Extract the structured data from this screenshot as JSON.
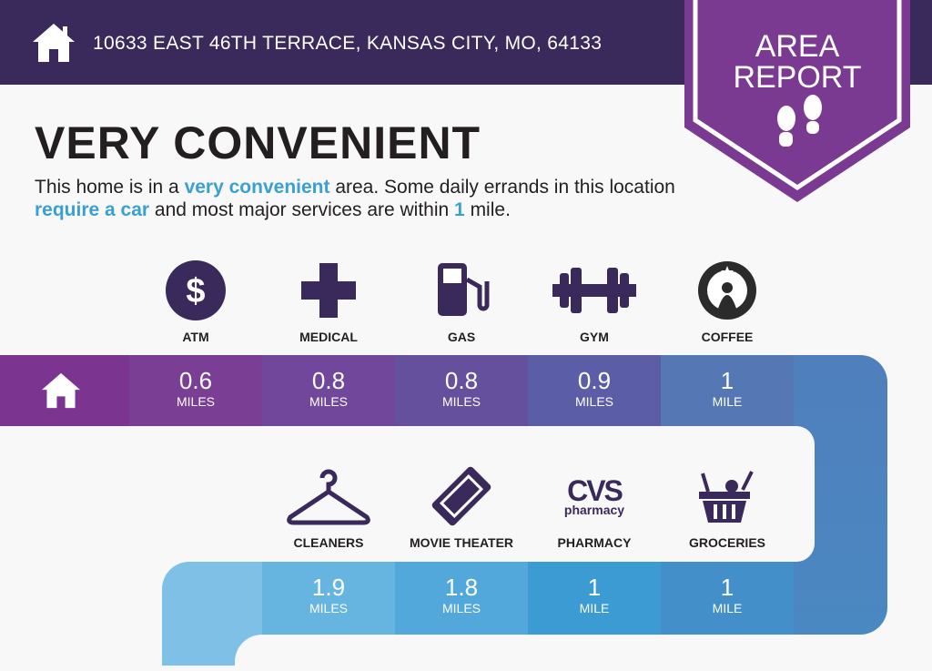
{
  "header": {
    "address": "10633 EAST 46TH TERRACE, KANSAS CITY, MO, 64133",
    "home_icon": "house-icon"
  },
  "badge": {
    "line1": "AREA",
    "line2": "REPORT",
    "icon": "footprints-icon"
  },
  "rating": {
    "title": "VERY CONVENIENT",
    "desc": {
      "p1": "This home is in a ",
      "h1": "very convenient",
      "p2": " area. Some daily errands in this location ",
      "h2": "require a car",
      "p3": " and most major services are within ",
      "h3": "1",
      "p4": " mile."
    }
  },
  "colors": {
    "header": "#3a2a5b",
    "badge": "#7b3a92",
    "highlight": "#3aa0d0"
  },
  "row1": [
    {
      "label": "ATM",
      "value": "0.6",
      "unit": "MILES",
      "icon": "dollar-icon"
    },
    {
      "label": "MEDICAL",
      "value": "0.8",
      "unit": "MILES",
      "icon": "medical-cross-icon"
    },
    {
      "label": "GAS",
      "value": "0.8",
      "unit": "MILES",
      "icon": "gas-pump-icon"
    },
    {
      "label": "GYM",
      "value": "0.9",
      "unit": "MILES",
      "icon": "dumbbell-icon"
    },
    {
      "label": "COFFEE",
      "value": "1",
      "unit": "MILE",
      "icon": "starbucks-logo-icon"
    }
  ],
  "row2": [
    {
      "label": "CLEANERS",
      "value": "1.9",
      "unit": "MILES",
      "icon": "hanger-icon"
    },
    {
      "label": "MOVIE THEATER",
      "value": "1.8",
      "unit": "MILES",
      "icon": "ticket-icon"
    },
    {
      "label": "PHARMACY",
      "value": "1",
      "unit": "MILE",
      "icon": "cvs-logo-icon",
      "logo_text": "CVS pharmacy"
    },
    {
      "label": "GROCERIES",
      "value": "1",
      "unit": "MILE",
      "icon": "grocery-basket-icon"
    }
  ]
}
